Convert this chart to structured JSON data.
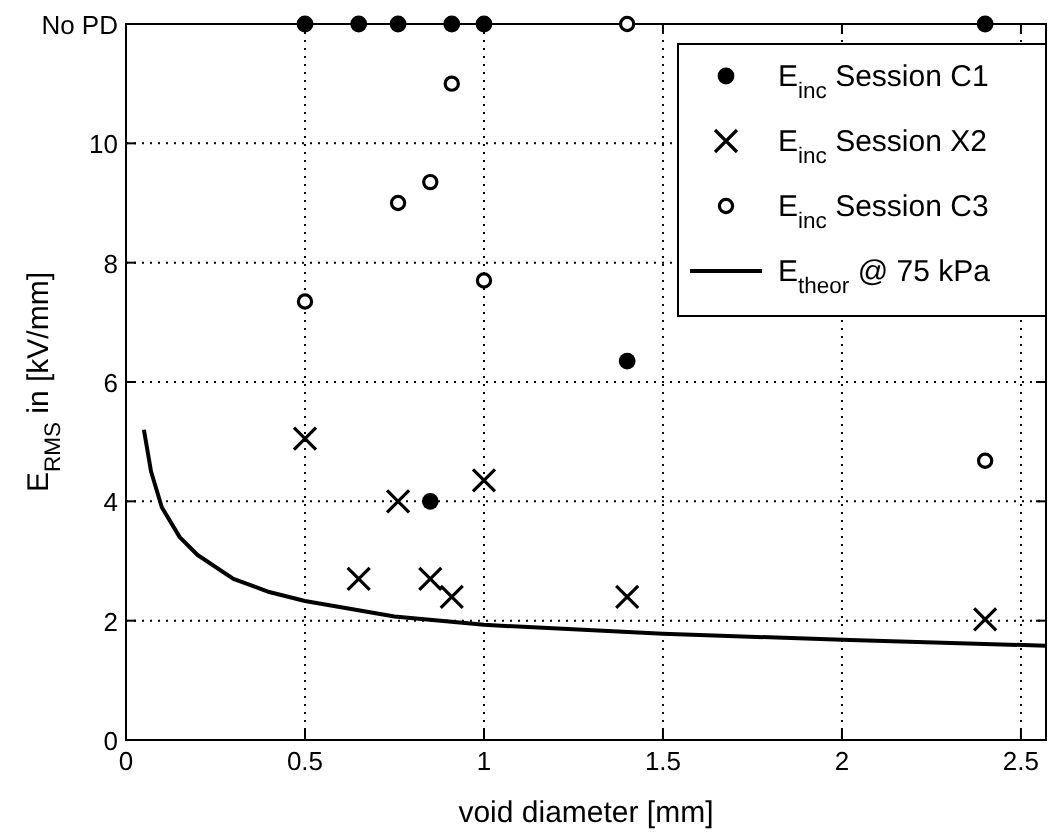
{
  "chart_data": {
    "type": "scatter",
    "xlabel": "void diameter [mm]",
    "ylabel": "E$_{RMS}$ in [kV/mm]",
    "xlim": [
      0,
      2.57
    ],
    "xticks": [
      0,
      0.5,
      1,
      1.5,
      2,
      2.5
    ],
    "ylim": [
      0,
      12
    ],
    "yticks": [
      0,
      2,
      4,
      6,
      8,
      10,
      {
        "value": 12,
        "label": "No PD"
      }
    ],
    "grid": true,
    "legend": "top right",
    "series": [
      {
        "name": "E$_{inc}$ Session C1",
        "color": "#000000",
        "marker": "circle",
        "x": [
          0.5,
          0.65,
          0.76,
          0.91,
          1.0,
          2.4,
          1.4,
          0.85
        ],
        "values": [
          12,
          12,
          12,
          12,
          12,
          12,
          6.35,
          4.0
        ]
      },
      {
        "name": "E$_{inc}$ Session X2",
        "color": "#000000",
        "marker": "cross",
        "x": [
          0.5,
          0.65,
          0.76,
          0.85,
          0.91,
          1.0,
          1.4,
          2.4
        ],
        "values": [
          5.05,
          2.7,
          4.0,
          2.7,
          2.4,
          4.35,
          2.4,
          2.02
        ]
      },
      {
        "name": "E$_{inc}$ Session C3",
        "color": "#ffffff",
        "marker": "circle",
        "x": [
          0.5,
          0.76,
          0.85,
          0.91,
          1.0,
          1.4,
          2.4
        ],
        "values": [
          7.35,
          9.0,
          9.35,
          11.0,
          7.7,
          12,
          4.68
        ]
      },
      {
        "name": "E$_{theor}$ @ 75 kPa",
        "type": "line",
        "color": "#000000",
        "marker": "none",
        "line_style": "solid",
        "x": [
          0.05,
          0.07,
          0.1,
          0.15,
          0.2,
          0.3,
          0.4,
          0.5,
          0.75,
          1.0,
          1.5,
          2.0,
          2.57
        ],
        "values": [
          5.2,
          4.5,
          3.9,
          3.4,
          3.1,
          2.7,
          2.48,
          2.33,
          2.07,
          1.93,
          1.78,
          1.68,
          1.58
        ]
      }
    ]
  }
}
